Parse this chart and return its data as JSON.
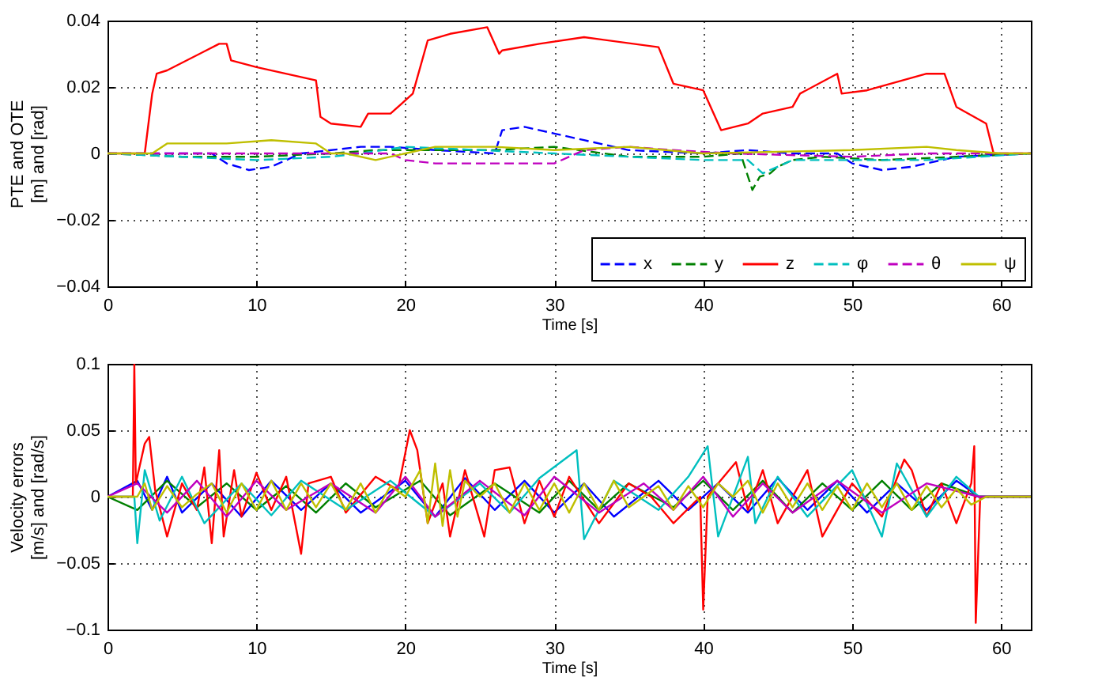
{
  "chart_data": [
    {
      "type": "line",
      "xlabel": "Time [s]",
      "ylabel": "PTE and OTE\n[m] and [rad]",
      "xlim": [
        0,
        62
      ],
      "xticks": [
        0,
        10,
        20,
        30,
        40,
        50,
        60
      ],
      "ylim": [
        -0.04,
        0.04
      ],
      "yticks": [
        {
          "value": -0.04,
          "label": "−0.04"
        },
        {
          "value": -0.02,
          "label": "−0.02"
        },
        0,
        0.02,
        0.04
      ],
      "grid": true,
      "legend": "bottom right",
      "marker": "none",
      "series": [
        {
          "name": "x",
          "color": "#0000ff",
          "line_style": "dashed",
          "x": [
            0,
            7,
            8,
            9.5,
            11,
            13,
            17,
            19,
            22,
            26,
            26.5,
            28,
            30,
            32,
            35,
            40,
            43,
            46,
            49,
            50,
            52,
            54,
            57,
            62
          ],
          "values": [
            0,
            0,
            -0.003,
            -0.005,
            -0.004,
            0,
            0.002,
            0.002,
            0.001,
            0,
            0.007,
            0.008,
            0.006,
            0.004,
            0.001,
            0,
            0.001,
            0,
            0,
            -0.003,
            -0.005,
            -0.004,
            -0.001,
            0
          ]
        },
        {
          "name": "y",
          "color": "#008000",
          "line_style": "dashed",
          "x": [
            0,
            5,
            10,
            15,
            18,
            22,
            26,
            30,
            35,
            40,
            42.5,
            43.3,
            43.8,
            44.5,
            45,
            46,
            48,
            52,
            57,
            62
          ],
          "values": [
            0,
            -0.001,
            -0.001,
            0,
            0.001,
            0.001,
            0.001,
            0.002,
            -0.001,
            -0.001,
            0,
            -0.011,
            -0.007,
            -0.006,
            -0.004,
            -0.002,
            -0.001,
            -0.002,
            -0.001,
            0
          ]
        },
        {
          "name": "z",
          "color": "#ff0000",
          "line_style": "solid",
          "x": [
            0,
            2.5,
            3,
            3.3,
            4,
            7.5,
            8,
            8.3,
            10,
            14,
            14.3,
            15,
            17,
            17.5,
            19,
            20.5,
            21.5,
            23,
            25.5,
            26.3,
            26.5,
            29,
            32,
            37,
            38,
            40,
            41.2,
            43,
            44,
            46,
            46.5,
            49,
            49.3,
            51,
            55,
            56.2,
            57,
            59,
            59.5,
            62
          ],
          "values": [
            0,
            0,
            0.018,
            0.024,
            0.025,
            0.033,
            0.033,
            0.028,
            0.026,
            0.022,
            0.011,
            0.009,
            0.008,
            0.012,
            0.012,
            0.018,
            0.034,
            0.036,
            0.038,
            0.03,
            0.031,
            0.033,
            0.035,
            0.032,
            0.021,
            0.019,
            0.007,
            0.009,
            0.012,
            0.014,
            0.018,
            0.024,
            0.018,
            0.019,
            0.024,
            0.024,
            0.014,
            0.009,
            0,
            0
          ]
        },
        {
          "name": "φ",
          "color": "#00bfbf",
          "line_style": "dashed",
          "x": [
            0,
            5,
            10,
            15,
            17,
            20,
            25,
            30,
            35,
            40,
            43,
            44,
            46,
            50,
            55,
            62
          ],
          "values": [
            0,
            -0.001,
            -0.002,
            -0.001,
            0,
            0.002,
            0.001,
            0,
            -0.001,
            -0.002,
            -0.002,
            -0.006,
            -0.002,
            -0.002,
            -0.002,
            0
          ]
        },
        {
          "name": "θ",
          "color": "#bf00bf",
          "line_style": "dashed",
          "x": [
            0,
            19,
            20,
            22,
            26,
            30,
            32,
            35,
            38,
            42,
            50,
            55,
            62
          ],
          "values": [
            0,
            0,
            -0.002,
            -0.003,
            -0.003,
            -0.003,
            0.001,
            0.002,
            0.001,
            0,
            -0.001,
            0,
            0
          ]
        },
        {
          "name": "ψ",
          "color": "#bfbf00",
          "line_style": "solid",
          "x": [
            0,
            3,
            4,
            8,
            11,
            14,
            15,
            16,
            18,
            20,
            22,
            26,
            30,
            35,
            40,
            50,
            55,
            57,
            60,
            62
          ],
          "values": [
            0,
            0,
            0.003,
            0.003,
            0.004,
            0.003,
            0,
            0,
            -0.002,
            0,
            0.002,
            0.002,
            0.001,
            0.002,
            0,
            0.001,
            0.002,
            0.001,
            0,
            0
          ]
        }
      ]
    },
    {
      "type": "line",
      "xlabel": "Time [s]",
      "ylabel": "Velocity errors\n[m/s] and [rad/s]",
      "xlim": [
        0,
        62
      ],
      "xticks": [
        0,
        10,
        20,
        30,
        40,
        50,
        60
      ],
      "ylim": [
        -0.1,
        0.1
      ],
      "yticks": [
        {
          "value": -0.1,
          "label": "−0.1"
        },
        {
          "value": -0.05,
          "label": "−0.05"
        },
        0,
        0.05,
        0.1
      ],
      "grid": true,
      "legend": false,
      "marker": "none",
      "series": [
        {
          "color": "#0000ff",
          "x": [
            0,
            2,
            3,
            4,
            5,
            7,
            9,
            11,
            13,
            15,
            17,
            20,
            22,
            24,
            26,
            28,
            30,
            32,
            34,
            37,
            39,
            41,
            43,
            45,
            47,
            49,
            51,
            53,
            55,
            57,
            58.5,
            62
          ],
          "values": [
            0,
            0.012,
            -0.01,
            0.015,
            -0.012,
            0.01,
            -0.015,
            0.012,
            -0.01,
            0.01,
            -0.012,
            0.012,
            -0.015,
            0.014,
            -0.01,
            0.012,
            -0.012,
            0.01,
            -0.015,
            0.012,
            -0.01,
            0.01,
            -0.012,
            0.014,
            -0.01,
            0.012,
            -0.012,
            0.01,
            -0.01,
            0.012,
            0,
            0
          ]
        },
        {
          "color": "#008000",
          "x": [
            0,
            2,
            4,
            6,
            8,
            10,
            12,
            14,
            16,
            18,
            21,
            23,
            26,
            29,
            31,
            33,
            35,
            38,
            40,
            42,
            44,
            46,
            48,
            50,
            52,
            54,
            56,
            58.5,
            62
          ],
          "values": [
            0,
            -0.01,
            0.012,
            -0.008,
            0.01,
            -0.01,
            0.008,
            -0.012,
            0.01,
            -0.008,
            0.012,
            -0.014,
            0.01,
            -0.012,
            0.012,
            -0.01,
            0.01,
            -0.008,
            0.012,
            -0.01,
            0.012,
            -0.012,
            0.01,
            -0.01,
            0.012,
            -0.01,
            0.01,
            0,
            0
          ]
        },
        {
          "color": "#ff0000",
          "x": [
            0,
            1.7,
            1.8,
            1.9,
            2.5,
            2.8,
            3.2,
            4,
            5,
            6,
            6.5,
            7,
            7.5,
            7.8,
            8.5,
            9,
            10,
            11,
            12,
            13,
            13.5,
            15,
            16,
            18,
            19.5,
            20.3,
            20.8,
            21.5,
            22.5,
            23,
            24,
            25.3,
            26,
            27,
            28,
            29,
            30,
            31,
            33,
            35,
            36.5,
            38,
            39.8,
            40,
            40.3,
            41,
            42.2,
            43,
            44,
            45,
            47,
            48,
            50,
            52,
            53.5,
            54,
            55,
            56,
            57,
            58,
            58.2,
            58.3,
            58.6,
            62
          ],
          "values": [
            0,
            0,
            0.1,
            0.01,
            0.04,
            0.045,
            0.005,
            -0.03,
            0.01,
            -0.01,
            0.022,
            -0.035,
            0.035,
            -0.03,
            0.02,
            -0.015,
            0.018,
            -0.01,
            0.015,
            -0.043,
            0.01,
            0.015,
            -0.012,
            0.015,
            0.005,
            0.05,
            0.035,
            -0.02,
            0.01,
            -0.03,
            0.02,
            -0.03,
            0.02,
            0.022,
            -0.02,
            0.012,
            -0.015,
            0.015,
            -0.02,
            0.01,
            0,
            -0.02,
            0,
            -0.085,
            0,
            0.01,
            0.026,
            -0.01,
            0.02,
            -0.02,
            0.02,
            -0.03,
            0.01,
            -0.015,
            0.028,
            0.02,
            -0.015,
            0.01,
            -0.02,
            0.01,
            0.038,
            -0.095,
            0,
            0
          ]
        },
        {
          "color": "#00bfbf",
          "x": [
            0,
            1.8,
            2,
            2.5,
            3.5,
            5,
            6.5,
            9,
            11,
            13,
            16,
            19,
            22,
            25,
            27,
            29,
            31.5,
            32,
            34,
            37,
            39,
            40.3,
            41,
            43,
            43.5,
            45,
            47,
            50,
            52,
            53,
            55,
            57,
            58.5,
            62
          ],
          "values": [
            0,
            0,
            -0.035,
            0.02,
            -0.018,
            0.015,
            -0.02,
            0.01,
            -0.014,
            0.012,
            -0.01,
            0.012,
            -0.015,
            0.01,
            -0.012,
            0.014,
            0.035,
            -0.032,
            0.012,
            -0.01,
            0.015,
            0.038,
            -0.03,
            0.03,
            -0.02,
            0.015,
            -0.015,
            0.02,
            -0.03,
            0.025,
            -0.015,
            0.015,
            0,
            0
          ]
        },
        {
          "color": "#bf00bf",
          "x": [
            0,
            2,
            4,
            6,
            8,
            10,
            12,
            15,
            18,
            20,
            22,
            25,
            28,
            30,
            33,
            36,
            38,
            40,
            42,
            44,
            46,
            49,
            52,
            55,
            58.5,
            62
          ],
          "values": [
            0,
            0.01,
            -0.012,
            0.012,
            -0.015,
            0.012,
            -0.01,
            0.01,
            -0.012,
            0.015,
            -0.015,
            0.012,
            -0.014,
            0.015,
            -0.012,
            0.01,
            -0.01,
            0.015,
            -0.015,
            0.01,
            -0.012,
            0.012,
            -0.012,
            0.01,
            0,
            0
          ]
        },
        {
          "color": "#bfbf00",
          "x": [
            0,
            2,
            2.5,
            3,
            4,
            5,
            6,
            7,
            8,
            9,
            10,
            11,
            12,
            13,
            14,
            15,
            16,
            17,
            18,
            19,
            20,
            21,
            21.5,
            22,
            22.5,
            23,
            23.5,
            24,
            25,
            26,
            27,
            28,
            29,
            30,
            31,
            32,
            33,
            34,
            35,
            36,
            37,
            38,
            39,
            40,
            41,
            42,
            43,
            44,
            45,
            46,
            47,
            48,
            49,
            50,
            51,
            52,
            53,
            54,
            55,
            56,
            57,
            58,
            59,
            62
          ],
          "values": [
            0,
            0,
            0.01,
            -0.01,
            0.008,
            -0.008,
            0.002,
            0.01,
            -0.012,
            0.01,
            -0.01,
            0.012,
            -0.01,
            0.01,
            -0.008,
            0.01,
            -0.01,
            0.01,
            -0.012,
            0.008,
            0,
            0.02,
            -0.02,
            0.025,
            -0.022,
            0.02,
            -0.015,
            0.012,
            0,
            0.01,
            -0.012,
            0.01,
            -0.01,
            0.01,
            -0.012,
            0.01,
            -0.01,
            0.012,
            -0.008,
            0,
            0.008,
            -0.01,
            0.008,
            -0.008,
            0.01,
            0,
            0.012,
            -0.012,
            0.01,
            -0.008,
            0.01,
            -0.01,
            0.008,
            -0.01,
            0.01,
            -0.008,
            0.01,
            -0.01,
            0.008,
            -0.008,
            0.006,
            -0.006,
            0,
            0
          ]
        }
      ]
    }
  ]
}
